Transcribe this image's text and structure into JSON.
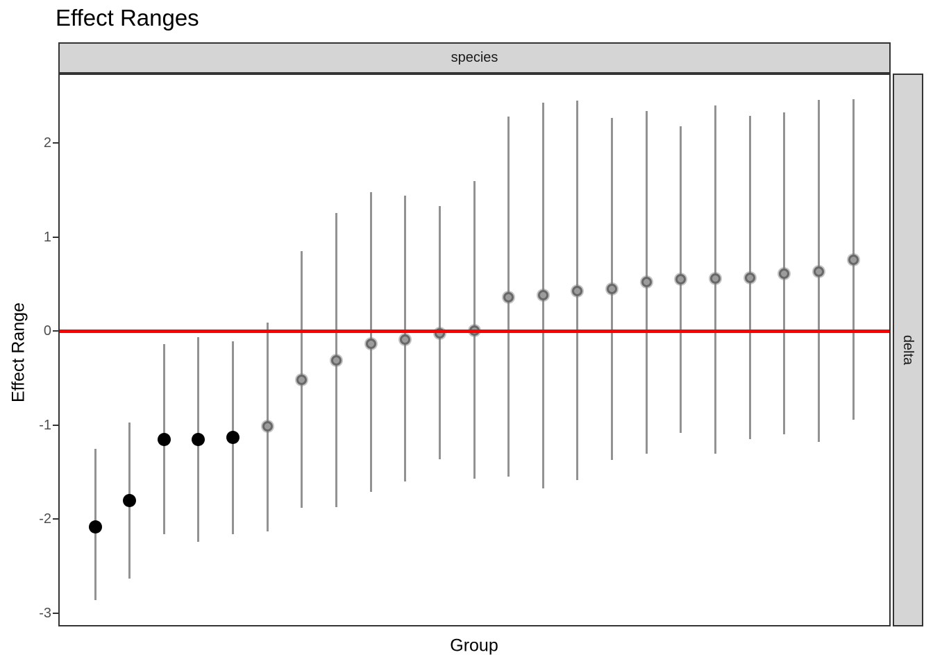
{
  "chart_data": {
    "type": "scatter",
    "subtype": "pointrange-caterpillar",
    "title": "Effect Ranges",
    "xlabel": "Group",
    "ylabel": "Effect Range",
    "facet_col_label": "species",
    "facet_row_label": "delta",
    "y_ticks": [
      2,
      1,
      0,
      -1,
      -2,
      -3
    ],
    "ylim": [
      -3.14,
      2.74
    ],
    "x_tick_labels_shown": false,
    "grid": "off",
    "legend": "none",
    "reference_line": {
      "y": 0,
      "color": "#ff0000"
    },
    "colors": {
      "emphasis_point": "#000000",
      "normal_point_fill": "#9c9c9c",
      "normal_point_ring": "#686868",
      "interval_line": "#929292",
      "strip_bg": "#d5d5d5",
      "strip_border": "#333333",
      "panel_border": "#333333",
      "axis_text": "#4d4d4d"
    },
    "groups": [
      {
        "index": 1,
        "est": -2.08,
        "lo": -2.86,
        "hi": -1.25,
        "style": "black"
      },
      {
        "index": 2,
        "est": -1.8,
        "lo": -2.63,
        "hi": -0.97,
        "style": "black"
      },
      {
        "index": 3,
        "est": -1.15,
        "lo": -2.16,
        "hi": -0.14,
        "style": "black"
      },
      {
        "index": 4,
        "est": -1.15,
        "lo": -2.24,
        "hi": -0.06,
        "style": "black"
      },
      {
        "index": 5,
        "est": -1.13,
        "lo": -2.16,
        "hi": -0.11,
        "style": "black"
      },
      {
        "index": 6,
        "est": -1.01,
        "lo": -2.13,
        "hi": 0.09,
        "style": "gray"
      },
      {
        "index": 7,
        "est": -0.52,
        "lo": -1.88,
        "hi": 0.85,
        "style": "gray"
      },
      {
        "index": 8,
        "est": -0.31,
        "lo": -1.87,
        "hi": 1.26,
        "style": "gray"
      },
      {
        "index": 9,
        "est": -0.13,
        "lo": -1.71,
        "hi": 1.48,
        "style": "gray"
      },
      {
        "index": 10,
        "est": -0.09,
        "lo": -1.6,
        "hi": 1.44,
        "style": "gray"
      },
      {
        "index": 11,
        "est": -0.02,
        "lo": -1.36,
        "hi": 1.33,
        "style": "gray"
      },
      {
        "index": 12,
        "est": 0.01,
        "lo": -1.57,
        "hi": 1.6,
        "style": "gray"
      },
      {
        "index": 13,
        "est": 0.36,
        "lo": -1.55,
        "hi": 2.28,
        "style": "gray"
      },
      {
        "index": 14,
        "est": 0.38,
        "lo": -1.67,
        "hi": 2.43,
        "style": "gray"
      },
      {
        "index": 15,
        "est": 0.43,
        "lo": -1.58,
        "hi": 2.45,
        "style": "gray"
      },
      {
        "index": 16,
        "est": 0.45,
        "lo": -1.37,
        "hi": 2.27,
        "style": "gray"
      },
      {
        "index": 17,
        "est": 0.52,
        "lo": -1.3,
        "hi": 2.34,
        "style": "gray"
      },
      {
        "index": 18,
        "est": 0.55,
        "lo": -1.08,
        "hi": 2.18,
        "style": "gray"
      },
      {
        "index": 19,
        "est": 0.56,
        "lo": -1.3,
        "hi": 2.4,
        "style": "gray"
      },
      {
        "index": 20,
        "est": 0.57,
        "lo": -1.15,
        "hi": 2.29,
        "style": "gray"
      },
      {
        "index": 21,
        "est": 0.61,
        "lo": -1.1,
        "hi": 2.33,
        "style": "gray"
      },
      {
        "index": 22,
        "est": 0.63,
        "lo": -1.18,
        "hi": 2.46,
        "style": "gray"
      },
      {
        "index": 23,
        "est": 0.76,
        "lo": -0.94,
        "hi": 2.47,
        "style": "gray"
      }
    ]
  }
}
